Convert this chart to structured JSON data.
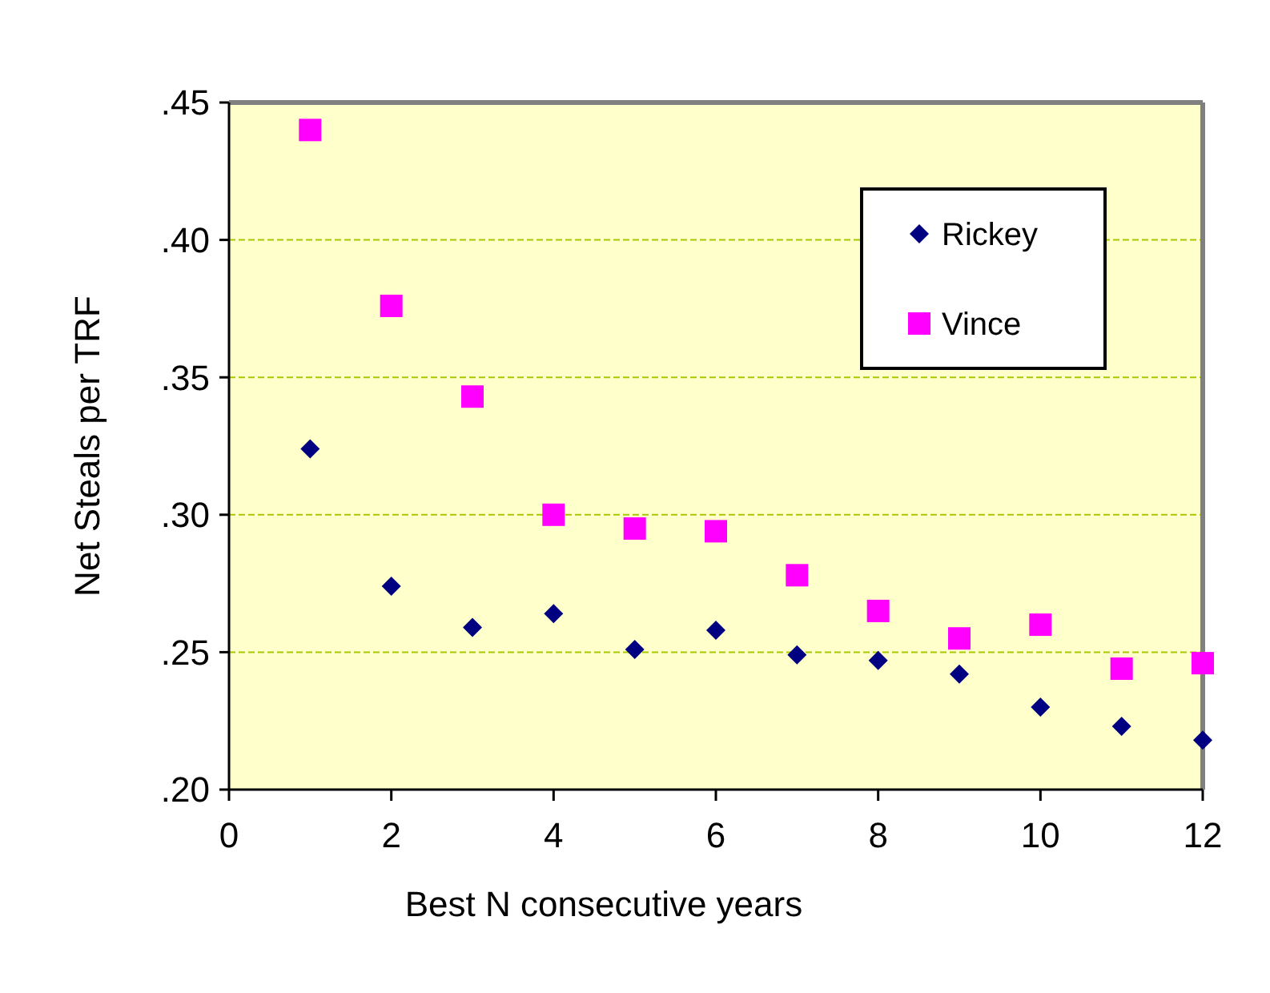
{
  "chart_data": {
    "type": "scatter",
    "xlabel": "Best N consecutive years",
    "ylabel": "Net Steals per TRF",
    "x": [
      1,
      2,
      3,
      4,
      5,
      6,
      7,
      8,
      9,
      10,
      11,
      12
    ],
    "series": [
      {
        "name": "Rickey",
        "color": "#000080",
        "marker": "diamond",
        "values": [
          0.324,
          0.274,
          0.259,
          0.264,
          0.251,
          0.258,
          0.249,
          0.247,
          0.242,
          0.23,
          0.223,
          0.218
        ]
      },
      {
        "name": "Vince",
        "color": "#ff00ff",
        "marker": "square",
        "values": [
          0.44,
          0.376,
          0.343,
          0.3,
          0.295,
          0.294,
          0.278,
          0.265,
          0.255,
          0.26,
          0.244,
          0.246
        ]
      }
    ],
    "xlim": [
      0,
      12
    ],
    "xticks": [
      0,
      2,
      4,
      6,
      8,
      10,
      12
    ],
    "ylim": [
      0.2,
      0.45
    ],
    "yticks": [
      {
        "value": 0.2,
        "label": ".20"
      },
      {
        "value": 0.25,
        "label": ".25"
      },
      {
        "value": 0.3,
        "label": ".30"
      },
      {
        "value": 0.35,
        "label": ".35"
      },
      {
        "value": 0.4,
        "label": ".40"
      },
      {
        "value": 0.45,
        "label": ".45"
      }
    ],
    "grid": "y",
    "legend": "top right"
  }
}
